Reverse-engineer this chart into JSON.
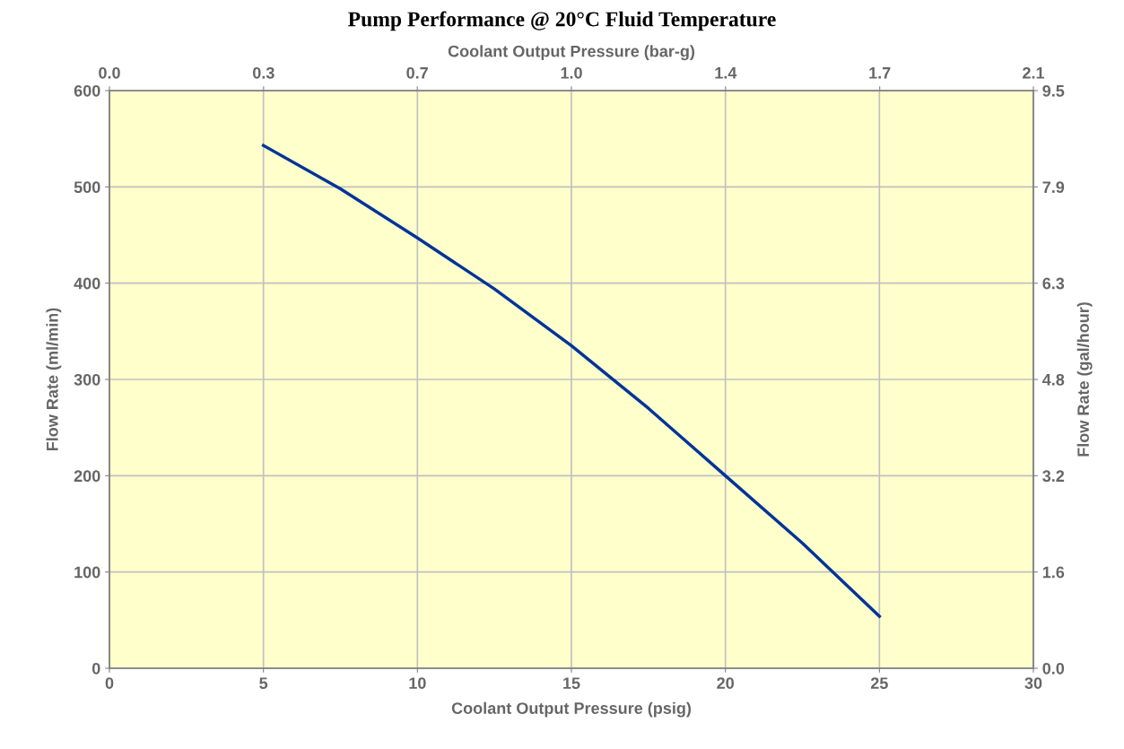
{
  "chart_data": {
    "type": "line",
    "title": "Pump Performance @ 20°C Fluid Temperature",
    "xlabel": "Coolant Output Pressure (psig)",
    "ylabel": "Flow Rate (ml/min)",
    "x2label": "Coolant Output Pressure (bar-g)",
    "y2label": "Flow Rate (gal/hour)",
    "x": [
      5,
      7.5,
      10,
      12.5,
      15,
      17.5,
      20,
      22.5,
      25
    ],
    "series": [
      {
        "color": "#003399",
        "values": [
          543,
          498,
          447,
          394,
          335,
          270,
          200,
          130,
          54
        ]
      }
    ],
    "xlim": [
      0,
      30
    ],
    "xticks": [
      0,
      5,
      10,
      15,
      20,
      25,
      30
    ],
    "ylim": [
      0,
      600
    ],
    "yticks": [
      0,
      100,
      200,
      300,
      400,
      500,
      600
    ],
    "x2lim": [
      0,
      2.068
    ],
    "x2ticks": [
      {
        "value": 0,
        "label": "0.0"
      },
      {
        "value": 0.345,
        "label": "0.3"
      },
      {
        "value": 0.689,
        "label": "0.7"
      },
      {
        "value": 1.034,
        "label": "1.0"
      },
      {
        "value": 1.379,
        "label": "1.4"
      },
      {
        "value": 1.724,
        "label": "1.7"
      },
      {
        "value": 2.068,
        "label": "2.1"
      }
    ],
    "y2lim": [
      0,
      9.51
    ],
    "y2ticks": [
      {
        "value": 0,
        "label": "0.0"
      },
      {
        "value": 1.585,
        "label": "1.6"
      },
      {
        "value": 3.17,
        "label": "3.2"
      },
      {
        "value": 4.755,
        "label": "4.8"
      },
      {
        "value": 6.34,
        "label": "6.3"
      },
      {
        "value": 7.925,
        "label": "7.9"
      },
      {
        "value": 9.51,
        "label": "9.5"
      }
    ],
    "grid": true,
    "marker": "none",
    "line_style": "solid",
    "legend": false
  }
}
